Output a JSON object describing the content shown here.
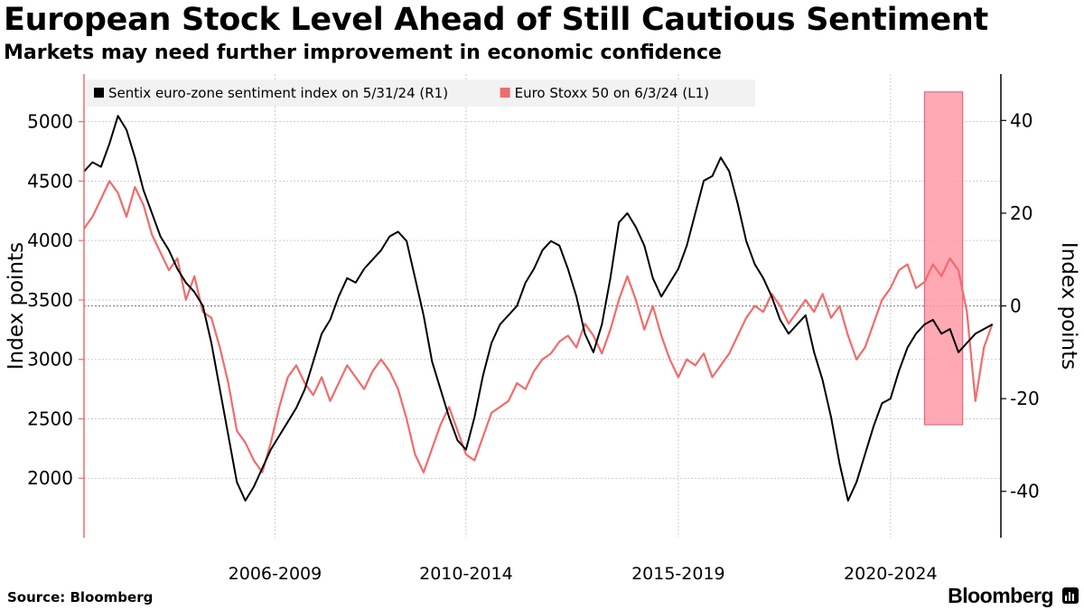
{
  "header": {
    "title": "European Stock Level Ahead of Still Cautious Sentiment",
    "subtitle": "Markets may need further improvement in economic confidence"
  },
  "footer": {
    "source": "Source: Bloomberg",
    "brand": "Bloomberg"
  },
  "colors": {
    "sentix": "#000000",
    "stoxx": "#f26b6b",
    "highlight_fill": "#ff9aa8",
    "highlight_stroke": "#e05a6e",
    "grid": "#cccccc"
  },
  "chart_data": {
    "type": "line",
    "x_tick_labels": [
      "2006-2009",
      "2010-2014",
      "2015-2019",
      "2020-2024"
    ],
    "x_tick_years": [
      2007.5,
      2012.0,
      2017.0,
      2022.0
    ],
    "x_range": [
      2003.0,
      2024.6
    ],
    "left_axis": {
      "label": "Index points",
      "ylim": [
        1500,
        5400
      ],
      "ticks": [
        2000,
        2500,
        3000,
        3500,
        4000,
        4500,
        5000
      ]
    },
    "right_axis": {
      "label": "Index points",
      "ylim": [
        -50,
        50
      ],
      "ticks": [
        -40,
        -20,
        0,
        20,
        40
      ]
    },
    "legend": [
      {
        "label": "Sentix euro-zone sentiment index on 5/31/24 (R1)",
        "color": "#000000"
      },
      {
        "label": "Euro Stoxx 50 on 6/3/24 (L1)",
        "color": "#f26b6b"
      }
    ],
    "highlight": {
      "x_start": 2022.8,
      "x_end": 2023.7,
      "y_top": 5250,
      "y_bottom": 2450
    },
    "series": [
      {
        "name": "Euro Stoxx 50 on 6/3/24 (L1)",
        "axis": "left",
        "color": "#f26b6b",
        "points": [
          [
            2003.0,
            4100
          ],
          [
            2003.2,
            4200
          ],
          [
            2003.4,
            4350
          ],
          [
            2003.6,
            4500
          ],
          [
            2003.8,
            4400
          ],
          [
            2004.0,
            4200
          ],
          [
            2004.2,
            4450
          ],
          [
            2004.4,
            4300
          ],
          [
            2004.6,
            4050
          ],
          [
            2004.8,
            3900
          ],
          [
            2005.0,
            3750
          ],
          [
            2005.2,
            3850
          ],
          [
            2005.4,
            3500
          ],
          [
            2005.6,
            3700
          ],
          [
            2005.8,
            3400
          ],
          [
            2006.0,
            3350
          ],
          [
            2006.2,
            3100
          ],
          [
            2006.4,
            2800
          ],
          [
            2006.6,
            2400
          ],
          [
            2006.8,
            2300
          ],
          [
            2007.0,
            2150
          ],
          [
            2007.2,
            2050
          ],
          [
            2007.4,
            2300
          ],
          [
            2007.6,
            2600
          ],
          [
            2007.8,
            2850
          ],
          [
            2008.0,
            2950
          ],
          [
            2008.2,
            2800
          ],
          [
            2008.4,
            2700
          ],
          [
            2008.6,
            2850
          ],
          [
            2008.8,
            2650
          ],
          [
            2009.0,
            2800
          ],
          [
            2009.2,
            2950
          ],
          [
            2009.4,
            2850
          ],
          [
            2009.6,
            2750
          ],
          [
            2009.8,
            2900
          ],
          [
            2010.0,
            3000
          ],
          [
            2010.2,
            2900
          ],
          [
            2010.4,
            2750
          ],
          [
            2010.6,
            2500
          ],
          [
            2010.8,
            2200
          ],
          [
            2011.0,
            2050
          ],
          [
            2011.2,
            2250
          ],
          [
            2011.4,
            2450
          ],
          [
            2011.6,
            2600
          ],
          [
            2011.8,
            2400
          ],
          [
            2012.0,
            2200
          ],
          [
            2012.2,
            2150
          ],
          [
            2012.4,
            2350
          ],
          [
            2012.6,
            2550
          ],
          [
            2012.8,
            2600
          ],
          [
            2013.0,
            2650
          ],
          [
            2013.2,
            2800
          ],
          [
            2013.4,
            2750
          ],
          [
            2013.6,
            2900
          ],
          [
            2013.8,
            3000
          ],
          [
            2014.0,
            3050
          ],
          [
            2014.2,
            3150
          ],
          [
            2014.4,
            3200
          ],
          [
            2014.6,
            3100
          ],
          [
            2014.8,
            3300
          ],
          [
            2015.0,
            3200
          ],
          [
            2015.2,
            3050
          ],
          [
            2015.4,
            3250
          ],
          [
            2015.6,
            3500
          ],
          [
            2015.8,
            3700
          ],
          [
            2016.0,
            3500
          ],
          [
            2016.2,
            3250
          ],
          [
            2016.4,
            3450
          ],
          [
            2016.6,
            3200
          ],
          [
            2016.8,
            3000
          ],
          [
            2017.0,
            2850
          ],
          [
            2017.2,
            3000
          ],
          [
            2017.4,
            2950
          ],
          [
            2017.6,
            3050
          ],
          [
            2017.8,
            2850
          ],
          [
            2018.0,
            2950
          ],
          [
            2018.2,
            3050
          ],
          [
            2018.4,
            3200
          ],
          [
            2018.6,
            3350
          ],
          [
            2018.8,
            3450
          ],
          [
            2019.0,
            3400
          ],
          [
            2019.2,
            3550
          ],
          [
            2019.4,
            3450
          ],
          [
            2019.6,
            3300
          ],
          [
            2019.8,
            3400
          ],
          [
            2020.0,
            3500
          ],
          [
            2020.2,
            3400
          ],
          [
            2020.4,
            3550
          ],
          [
            2020.6,
            3350
          ],
          [
            2020.8,
            3450
          ],
          [
            2021.0,
            3200
          ],
          [
            2021.2,
            3000
          ],
          [
            2021.4,
            3100
          ],
          [
            2021.6,
            3300
          ],
          [
            2021.8,
            3500
          ],
          [
            2022.0,
            3600
          ],
          [
            2022.2,
            3750
          ],
          [
            2022.4,
            3800
          ],
          [
            2022.6,
            3600
          ],
          [
            2022.8,
            3650
          ],
          [
            2023.0,
            3800
          ],
          [
            2023.2,
            3700
          ],
          [
            2023.4,
            3850
          ],
          [
            2023.6,
            3750
          ],
          [
            2023.8,
            3400
          ],
          [
            2024.0,
            2650
          ],
          [
            2024.2,
            3100
          ],
          [
            2024.4,
            3300
          ]
        ]
      },
      {
        "name": "Sentix euro-zone sentiment index on 5/31/24 (R1)",
        "axis": "right",
        "color": "#000000",
        "points": [
          [
            2003.0,
            29
          ],
          [
            2003.2,
            31
          ],
          [
            2003.4,
            30
          ],
          [
            2003.6,
            35
          ],
          [
            2003.8,
            41
          ],
          [
            2004.0,
            38
          ],
          [
            2004.2,
            32
          ],
          [
            2004.4,
            25
          ],
          [
            2004.6,
            20
          ],
          [
            2004.8,
            15
          ],
          [
            2005.0,
            12
          ],
          [
            2005.2,
            8
          ],
          [
            2005.4,
            5
          ],
          [
            2005.6,
            3
          ],
          [
            2005.8,
            0
          ],
          [
            2006.0,
            -8
          ],
          [
            2006.2,
            -18
          ],
          [
            2006.4,
            -28
          ],
          [
            2006.6,
            -38
          ],
          [
            2006.8,
            -42
          ],
          [
            2007.0,
            -39
          ],
          [
            2007.2,
            -35
          ],
          [
            2007.4,
            -31
          ],
          [
            2007.6,
            -28
          ],
          [
            2007.8,
            -25
          ],
          [
            2008.0,
            -22
          ],
          [
            2008.2,
            -18
          ],
          [
            2008.4,
            -12
          ],
          [
            2008.6,
            -6
          ],
          [
            2008.8,
            -3
          ],
          [
            2009.0,
            2
          ],
          [
            2009.2,
            6
          ],
          [
            2009.4,
            5
          ],
          [
            2009.6,
            8
          ],
          [
            2009.8,
            10
          ],
          [
            2010.0,
            12
          ],
          [
            2010.2,
            15
          ],
          [
            2010.4,
            16
          ],
          [
            2010.6,
            14
          ],
          [
            2010.8,
            6
          ],
          [
            2011.0,
            -2
          ],
          [
            2011.2,
            -12
          ],
          [
            2011.4,
            -18
          ],
          [
            2011.6,
            -24
          ],
          [
            2011.8,
            -29
          ],
          [
            2012.0,
            -31
          ],
          [
            2012.2,
            -24
          ],
          [
            2012.4,
            -15
          ],
          [
            2012.6,
            -8
          ],
          [
            2012.8,
            -4
          ],
          [
            2013.0,
            -2
          ],
          [
            2013.2,
            0
          ],
          [
            2013.4,
            5
          ],
          [
            2013.6,
            8
          ],
          [
            2013.8,
            12
          ],
          [
            2014.0,
            14
          ],
          [
            2014.2,
            13
          ],
          [
            2014.4,
            8
          ],
          [
            2014.6,
            2
          ],
          [
            2014.8,
            -6
          ],
          [
            2015.0,
            -10
          ],
          [
            2015.2,
            -4
          ],
          [
            2015.4,
            6
          ],
          [
            2015.6,
            18
          ],
          [
            2015.8,
            20
          ],
          [
            2016.0,
            17
          ],
          [
            2016.2,
            13
          ],
          [
            2016.4,
            6
          ],
          [
            2016.6,
            2
          ],
          [
            2016.8,
            5
          ],
          [
            2017.0,
            8
          ],
          [
            2017.2,
            13
          ],
          [
            2017.4,
            20
          ],
          [
            2017.6,
            27
          ],
          [
            2017.8,
            28
          ],
          [
            2018.0,
            32
          ],
          [
            2018.2,
            29
          ],
          [
            2018.4,
            22
          ],
          [
            2018.6,
            14
          ],
          [
            2018.8,
            9
          ],
          [
            2019.0,
            6
          ],
          [
            2019.2,
            2
          ],
          [
            2019.4,
            -3
          ],
          [
            2019.6,
            -6
          ],
          [
            2019.8,
            -4
          ],
          [
            2020.0,
            -2
          ],
          [
            2020.2,
            -10
          ],
          [
            2020.4,
            -16
          ],
          [
            2020.6,
            -24
          ],
          [
            2020.8,
            -34
          ],
          [
            2021.0,
            -42
          ],
          [
            2021.2,
            -38
          ],
          [
            2021.4,
            -32
          ],
          [
            2021.6,
            -26
          ],
          [
            2021.8,
            -21
          ],
          [
            2022.0,
            -20
          ],
          [
            2022.2,
            -14
          ],
          [
            2022.4,
            -9
          ],
          [
            2022.6,
            -6
          ],
          [
            2022.8,
            -4
          ],
          [
            2023.0,
            -3
          ],
          [
            2023.2,
            -6
          ],
          [
            2023.4,
            -5
          ],
          [
            2023.6,
            -10
          ],
          [
            2023.8,
            -8
          ],
          [
            2024.0,
            -6
          ],
          [
            2024.2,
            -5
          ],
          [
            2024.4,
            -4
          ]
        ]
      }
    ]
  }
}
